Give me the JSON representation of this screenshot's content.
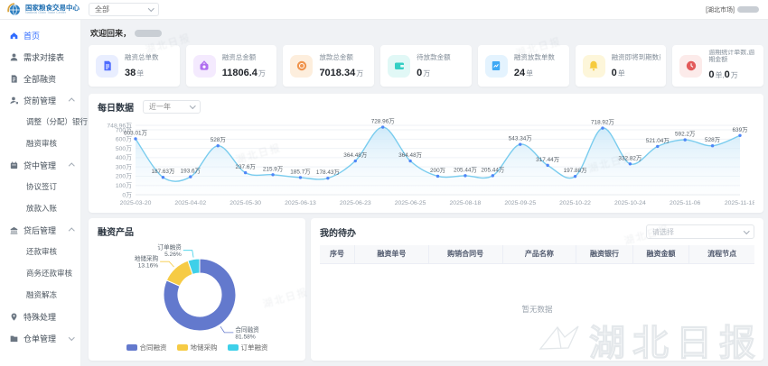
{
  "header": {
    "brand_title": "国家粮食交易中心",
    "brand_subtitle": "National Grain Trade Center",
    "org_select_value": "全部",
    "market_label": "[湖北市场]"
  },
  "sidebar": {
    "items": [
      {
        "label": "首页"
      },
      {
        "label": "需求对接表"
      },
      {
        "label": "全部融资"
      },
      {
        "label": "贷前管理"
      },
      {
        "label": "调整（分配）银行"
      },
      {
        "label": "融资审核"
      },
      {
        "label": "贷中管理"
      },
      {
        "label": "协议签订"
      },
      {
        "label": "放款入账"
      },
      {
        "label": "贷后管理"
      },
      {
        "label": "还款审核"
      },
      {
        "label": "商务还款审核"
      },
      {
        "label": "融资解冻"
      },
      {
        "label": "特殊处理"
      },
      {
        "label": "仓单管理"
      }
    ]
  },
  "main": {
    "welcome_prefix": "欢迎回来，",
    "stat_cards": [
      {
        "label": "融资总单数",
        "value": "38",
        "unit": "单"
      },
      {
        "label": "融资总金额",
        "value": "11806.4",
        "unit": "万"
      },
      {
        "label": "放款总金额",
        "value": "7018.34",
        "unit": "万"
      },
      {
        "label": "待放款金额",
        "value": "0",
        "unit": "万"
      },
      {
        "label": "融资放款单数",
        "value": "24",
        "unit": "单"
      },
      {
        "label": "融资即将到期数量",
        "value": "0",
        "unit": "单"
      },
      {
        "label": "逾期统计单数,逾期金额",
        "value": "0",
        "unit": "单,",
        "value2": "0",
        "unit2": "万"
      }
    ],
    "daily_section": {
      "title": "每日数据",
      "range_value": "近一年"
    },
    "product_section": {
      "title": "融资产品"
    },
    "todo_section": {
      "title": "我的待办",
      "filter_placeholder": "请选择",
      "columns": [
        "序号",
        "融资单号",
        "购销合同号",
        "产品名称",
        "融资银行",
        "融资金额",
        "流程节点"
      ],
      "empty_text": "暂无数据"
    },
    "watermark_text": "湖北日报"
  },
  "chart_data": [
    {
      "type": "line",
      "title": "每日数据",
      "range_selector": "近一年",
      "point_labels": [
        "603.01万",
        "187.63万",
        "193.6万",
        "528万",
        "237.6万",
        "215.9万",
        "185.7万",
        "178.43万",
        "364.48万",
        "728.96万",
        "364.48万",
        "200万",
        "205.44万",
        "205.44万",
        "543.34万",
        "317.44万",
        "197.88万",
        "718.92万",
        "332.82万",
        "521.04万",
        "592.2万",
        "528万",
        "639万"
      ],
      "values": [
        603.01,
        187.63,
        193.6,
        528,
        237.6,
        215.9,
        185.7,
        178.43,
        364.48,
        728.96,
        364.48,
        200,
        205.44,
        205.44,
        543.34,
        317.44,
        197.88,
        718.92,
        332.82,
        521.04,
        592.2,
        528,
        639
      ],
      "x_tick_labels": [
        "2025-03-20",
        "2025-04-02",
        "2025-05-30",
        "2025-06-13",
        "2025-06-23",
        "2025-06-25",
        "2025-08-18",
        "2025-09-25",
        "2025-10-22",
        "2025-10-24",
        "2025-11-06",
        "2025-11-18"
      ],
      "x_tick_every": 2,
      "y_tick_labels": [
        "0万",
        "100万",
        "200万",
        "300万",
        "400万",
        "500万",
        "600万",
        "700万",
        "748.96万"
      ],
      "y_tick_values": [
        0,
        100,
        200,
        300,
        400,
        500,
        600,
        700,
        748.96
      ],
      "ymax": 748.96,
      "line_color": "#79ccee",
      "point_color": "#4f86f7",
      "area_top": "#c6e6f8",
      "area_bottom": "#f4fafe",
      "grid": true,
      "unit": "万"
    },
    {
      "type": "pie",
      "title": "融资产品",
      "slices": [
        {
          "name": "合同融资",
          "pct": 81.58,
          "pct_label": "81.58%",
          "color": "#6379cd"
        },
        {
          "name": "地储采购",
          "pct": 13.16,
          "pct_label": "13.16%",
          "color": "#f6cb45"
        },
        {
          "name": "订单融资",
          "pct": 5.26,
          "pct_label": "5.26%",
          "color": "#3ed0e9"
        }
      ],
      "legend_position": "bottom",
      "inner_radius_ratio": 0.6
    }
  ]
}
